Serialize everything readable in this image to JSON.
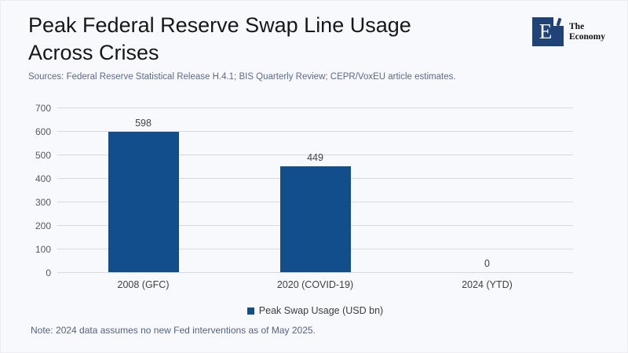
{
  "header": {
    "title_lines": [
      "Peak Federal Reserve Swap Line Usage",
      "Across Crises"
    ],
    "sources": "Sources: Federal Reserve Statistical Release H.4.1; BIS Quarterly Review; CEPR/VoxEU article estimates.",
    "logo": {
      "mark_letter": "E",
      "name_line1": "The",
      "name_line2": "Economy"
    }
  },
  "chart_data": {
    "type": "bar",
    "title": "Peak Federal Reserve Swap Line Usage Across Crises",
    "categories": [
      "2008 (GFC)",
      "2020 (COVID-19)",
      "2024 (YTD)"
    ],
    "series": [
      {
        "name": "Peak Swap Usage (USD bn)",
        "values": [
          598,
          449,
          0
        ]
      }
    ],
    "data_labels": [
      "598",
      "449",
      "0"
    ],
    "xlabel": "",
    "ylabel": "",
    "ylim": [
      0,
      700
    ],
    "yticks": [
      0,
      100,
      200,
      300,
      400,
      500,
      600,
      700
    ],
    "grid": true,
    "legend_position": "bottom",
    "bar_color": "#114e8b"
  },
  "note": "Note: 2024 data assumes no new Fed interventions as of May 2025.",
  "colors": {
    "background": "#f8f9fc",
    "bar": "#114e8b",
    "logo_navy": "#1f4377",
    "gridline": "#d8d9de",
    "muted_text": "#5c6a87",
    "axis_text": "#595959",
    "label_text": "#404040"
  }
}
